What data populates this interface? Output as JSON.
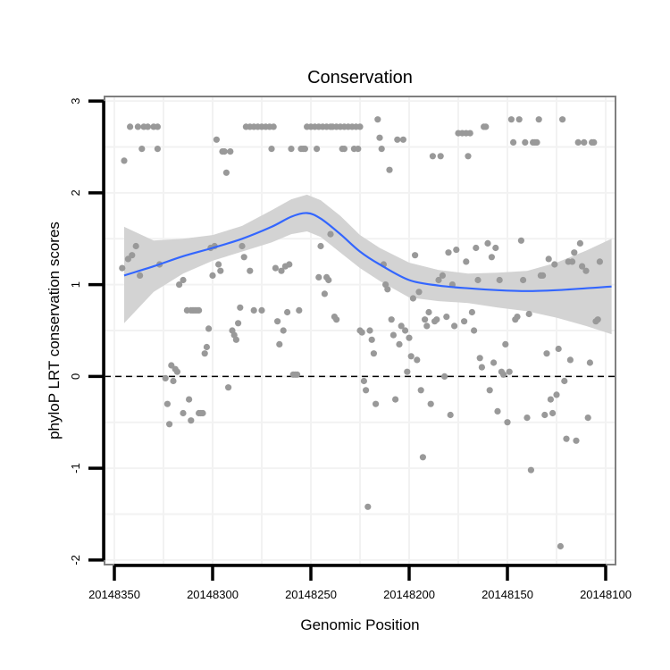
{
  "chart_data": {
    "type": "scatter",
    "title": "Conservation",
    "xlabel": "Genomic Position",
    "ylabel": "phyloP LRT conservation scores",
    "x_reversed": true,
    "xlim": [
      20148355,
      20148095
    ],
    "ylim": [
      -2.05,
      3.05
    ],
    "x_ticks": [
      20148350,
      20148300,
      20148250,
      20148200,
      20148150,
      20148100
    ],
    "x_tick_labels": [
      "20148350",
      "20148300",
      "20148250",
      "20148200",
      "20148150",
      "20148100"
    ],
    "y_ticks": [
      -2,
      -1,
      0,
      1,
      2,
      3
    ],
    "y_tick_labels": [
      "-2",
      "-1",
      "0",
      "1",
      "2",
      "3"
    ],
    "reference_line": {
      "y": 0,
      "style": "dashed"
    },
    "colors": {
      "points": "#999999",
      "smooth": "#3366FF",
      "band": "#D3D3D3",
      "panel_border": "#7F7F7F",
      "grid": "#F2F2F2"
    },
    "points": [
      [
        20148345,
        2.35
      ],
      [
        20148342,
        2.72
      ],
      [
        20148338,
        2.72
      ],
      [
        20148335,
        2.72
      ],
      [
        20148333,
        2.72
      ],
      [
        20148330,
        2.72
      ],
      [
        20148328,
        2.72
      ],
      [
        20148336,
        2.48
      ],
      [
        20148328,
        2.48
      ],
      [
        20148346,
        1.18
      ],
      [
        20148343,
        1.28
      ],
      [
        20148341,
        1.32
      ],
      [
        20148339,
        1.42
      ],
      [
        20148337,
        1.1
      ],
      [
        20148327,
        1.22
      ],
      [
        20148324,
        -0.02
      ],
      [
        20148323,
        -0.3
      ],
      [
        20148322,
        -0.52
      ],
      [
        20148321,
        0.12
      ],
      [
        20148320,
        -0.05
      ],
      [
        20148319,
        0.08
      ],
      [
        20148318,
        0.05
      ],
      [
        20148317,
        1.0
      ],
      [
        20148315,
        1.05
      ],
      [
        20148315,
        -0.4
      ],
      [
        20148313,
        0.72
      ],
      [
        20148311,
        0.72
      ],
      [
        20148310,
        0.72
      ],
      [
        20148309,
        0.72
      ],
      [
        20148308,
        0.72
      ],
      [
        20148307,
        0.72
      ],
      [
        20148312,
        -0.25
      ],
      [
        20148311,
        -0.48
      ],
      [
        20148307,
        -0.4
      ],
      [
        20148306,
        -0.4
      ],
      [
        20148305,
        -0.4
      ],
      [
        20148304,
        0.25
      ],
      [
        20148303,
        0.32
      ],
      [
        20148302,
        0.52
      ],
      [
        20148301,
        1.4
      ],
      [
        20148300,
        1.1
      ],
      [
        20148299,
        1.42
      ],
      [
        20148298,
        2.58
      ],
      [
        20148297,
        1.22
      ],
      [
        20148296,
        1.15
      ],
      [
        20148295,
        2.45
      ],
      [
        20148294,
        2.45
      ],
      [
        20148293,
        2.22
      ],
      [
        20148292,
        -0.12
      ],
      [
        20148291,
        2.45
      ],
      [
        20148290,
        0.5
      ],
      [
        20148289,
        0.45
      ],
      [
        20148288,
        0.4
      ],
      [
        20148287,
        0.58
      ],
      [
        20148286,
        0.75
      ],
      [
        20148285,
        1.42
      ],
      [
        20148284,
        1.3
      ],
      [
        20148283,
        2.72
      ],
      [
        20148281,
        2.72
      ],
      [
        20148279,
        2.72
      ],
      [
        20148277,
        2.72
      ],
      [
        20148275,
        2.72
      ],
      [
        20148273,
        2.72
      ],
      [
        20148271,
        2.72
      ],
      [
        20148269,
        2.72
      ],
      [
        20148281,
        1.15
      ],
      [
        20148279,
        0.72
      ],
      [
        20148275,
        0.72
      ],
      [
        20148270,
        2.48
      ],
      [
        20148268,
        1.18
      ],
      [
        20148267,
        0.6
      ],
      [
        20148266,
        0.35
      ],
      [
        20148265,
        1.15
      ],
      [
        20148264,
        0.5
      ],
      [
        20148263,
        1.2
      ],
      [
        20148262,
        0.7
      ],
      [
        20148261,
        1.22
      ],
      [
        20148260,
        2.48
      ],
      [
        20148259,
        0.02
      ],
      [
        20148258,
        0.02
      ],
      [
        20148257,
        0.02
      ],
      [
        20148256,
        0.72
      ],
      [
        20148255,
        2.48
      ],
      [
        20148254,
        2.48
      ],
      [
        20148253,
        2.48
      ],
      [
        20148252,
        2.72
      ],
      [
        20148250,
        2.72
      ],
      [
        20148248,
        2.72
      ],
      [
        20148246,
        2.72
      ],
      [
        20148244,
        2.72
      ],
      [
        20148242,
        2.72
      ],
      [
        20148240,
        2.72
      ],
      [
        20148247,
        2.48
      ],
      [
        20148246,
        1.08
      ],
      [
        20148245,
        1.42
      ],
      [
        20148243,
        0.9
      ],
      [
        20148242,
        1.08
      ],
      [
        20148241,
        1.05
      ],
      [
        20148240,
        1.55
      ],
      [
        20148239,
        2.72
      ],
      [
        20148237,
        2.72
      ],
      [
        20148235,
        2.72
      ],
      [
        20148233,
        2.72
      ],
      [
        20148231,
        2.72
      ],
      [
        20148229,
        2.72
      ],
      [
        20148227,
        2.72
      ],
      [
        20148225,
        2.72
      ],
      [
        20148238,
        0.65
      ],
      [
        20148237,
        0.62
      ],
      [
        20148234,
        2.48
      ],
      [
        20148233,
        2.48
      ],
      [
        20148228,
        2.48
      ],
      [
        20148226,
        2.48
      ],
      [
        20148225,
        0.5
      ],
      [
        20148224,
        0.48
      ],
      [
        20148223,
        -0.05
      ],
      [
        20148222,
        -0.15
      ],
      [
        20148221,
        -1.42
      ],
      [
        20148220,
        0.5
      ],
      [
        20148219,
        0.4
      ],
      [
        20148218,
        0.25
      ],
      [
        20148217,
        -0.3
      ],
      [
        20148216,
        2.8
      ],
      [
        20148215,
        2.6
      ],
      [
        20148214,
        2.48
      ],
      [
        20148213,
        1.22
      ],
      [
        20148212,
        1.0
      ],
      [
        20148211,
        0.95
      ],
      [
        20148210,
        2.25
      ],
      [
        20148209,
        0.62
      ],
      [
        20148208,
        0.45
      ],
      [
        20148207,
        -0.25
      ],
      [
        20148206,
        2.58
      ],
      [
        20148205,
        0.35
      ],
      [
        20148204,
        0.55
      ],
      [
        20148203,
        2.58
      ],
      [
        20148202,
        0.5
      ],
      [
        20148201,
        0.05
      ],
      [
        20148200,
        0.42
      ],
      [
        20148199,
        0.22
      ],
      [
        20148198,
        0.85
      ],
      [
        20148197,
        1.32
      ],
      [
        20148196,
        0.18
      ],
      [
        20148195,
        0.92
      ],
      [
        20148194,
        -0.15
      ],
      [
        20148193,
        -0.88
      ],
      [
        20148192,
        0.62
      ],
      [
        20148191,
        0.55
      ],
      [
        20148190,
        0.7
      ],
      [
        20148189,
        -0.3
      ],
      [
        20148188,
        2.4
      ],
      [
        20148187,
        0.6
      ],
      [
        20148186,
        0.62
      ],
      [
        20148185,
        1.05
      ],
      [
        20148184,
        2.4
      ],
      [
        20148183,
        1.1
      ],
      [
        20148182,
        0.0
      ],
      [
        20148181,
        0.65
      ],
      [
        20148180,
        1.35
      ],
      [
        20148179,
        -0.42
      ],
      [
        20148178,
        1.0
      ],
      [
        20148177,
        0.55
      ],
      [
        20148176,
        1.38
      ],
      [
        20148175,
        2.65
      ],
      [
        20148173,
        2.65
      ],
      [
        20148171,
        2.65
      ],
      [
        20148169,
        2.65
      ],
      [
        20148172,
        0.6
      ],
      [
        20148171,
        1.25
      ],
      [
        20148170,
        2.4
      ],
      [
        20148168,
        0.7
      ],
      [
        20148167,
        0.5
      ],
      [
        20148166,
        1.4
      ],
      [
        20148165,
        1.05
      ],
      [
        20148164,
        0.2
      ],
      [
        20148163,
        0.1
      ],
      [
        20148162,
        2.72
      ],
      [
        20148161,
        2.72
      ],
      [
        20148160,
        1.45
      ],
      [
        20148159,
        -0.15
      ],
      [
        20148158,
        1.3
      ],
      [
        20148157,
        0.15
      ],
      [
        20148156,
        1.4
      ],
      [
        20148155,
        -0.38
      ],
      [
        20148154,
        1.05
      ],
      [
        20148153,
        0.05
      ],
      [
        20148152,
        0.02
      ],
      [
        20148151,
        0.35
      ],
      [
        20148150,
        -0.5
      ],
      [
        20148149,
        0.05
      ],
      [
        20148148,
        2.8
      ],
      [
        20148147,
        2.55
      ],
      [
        20148146,
        0.62
      ],
      [
        20148145,
        0.65
      ],
      [
        20148144,
        2.8
      ],
      [
        20148143,
        1.48
      ],
      [
        20148142,
        1.05
      ],
      [
        20148141,
        2.55
      ],
      [
        20148140,
        -0.45
      ],
      [
        20148139,
        0.68
      ],
      [
        20148138,
        -1.02
      ],
      [
        20148137,
        2.55
      ],
      [
        20148136,
        2.55
      ],
      [
        20148135,
        2.55
      ],
      [
        20148134,
        2.8
      ],
      [
        20148133,
        1.1
      ],
      [
        20148132,
        1.1
      ],
      [
        20148131,
        -0.42
      ],
      [
        20148130,
        0.25
      ],
      [
        20148129,
        1.28
      ],
      [
        20148128,
        -0.25
      ],
      [
        20148127,
        -0.4
      ],
      [
        20148126,
        1.22
      ],
      [
        20148125,
        -0.2
      ],
      [
        20148124,
        0.3
      ],
      [
        20148123,
        -1.85
      ],
      [
        20148122,
        2.8
      ],
      [
        20148121,
        -0.05
      ],
      [
        20148120,
        -0.68
      ],
      [
        20148119,
        1.25
      ],
      [
        20148118,
        0.18
      ],
      [
        20148117,
        1.25
      ],
      [
        20148116,
        1.35
      ],
      [
        20148115,
        -0.7
      ],
      [
        20148114,
        2.55
      ],
      [
        20148113,
        1.45
      ],
      [
        20148112,
        1.2
      ],
      [
        20148111,
        2.55
      ],
      [
        20148110,
        1.15
      ],
      [
        20148109,
        -0.45
      ],
      [
        20148108,
        0.15
      ],
      [
        20148107,
        2.55
      ],
      [
        20148106,
        2.55
      ],
      [
        20148105,
        0.6
      ],
      [
        20148104,
        0.62
      ],
      [
        20148103,
        1.25
      ]
    ],
    "smooth": {
      "x": [
        20148345,
        20148330,
        20148315,
        20148300,
        20148285,
        20148270,
        20148260,
        20148252,
        20148245,
        20148235,
        20148225,
        20148215,
        20148200,
        20148185,
        20148170,
        20148155,
        20148140,
        20148125,
        20148110,
        20148097
      ],
      "y": [
        1.1,
        1.2,
        1.31,
        1.4,
        1.5,
        1.63,
        1.74,
        1.78,
        1.72,
        1.55,
        1.36,
        1.22,
        1.05,
        0.99,
        0.96,
        0.94,
        0.93,
        0.94,
        0.96,
        0.98
      ],
      "lower": [
        0.58,
        0.92,
        1.12,
        1.26,
        1.36,
        1.46,
        1.55,
        1.58,
        1.52,
        1.35,
        1.18,
        1.04,
        0.86,
        0.82,
        0.8,
        0.75,
        0.71,
        0.64,
        0.55,
        0.46
      ],
      "upper": [
        1.63,
        1.48,
        1.5,
        1.54,
        1.64,
        1.81,
        1.93,
        1.98,
        1.92,
        1.75,
        1.54,
        1.4,
        1.24,
        1.16,
        1.12,
        1.13,
        1.15,
        1.24,
        1.37,
        1.5
      ]
    }
  }
}
